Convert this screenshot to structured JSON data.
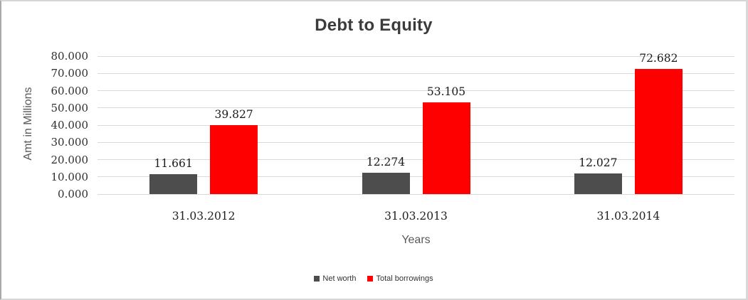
{
  "chart_data": {
    "type": "bar",
    "title": "Debt to Equity",
    "xlabel": "Years",
    "ylabel": "Amt in Millions",
    "categories": [
      "31.03.2012",
      "31.03.2013",
      "31.03.2014"
    ],
    "series": [
      {
        "name": "Net worth",
        "color": "#4d4d4d",
        "values": [
          11.661,
          12.274,
          12.027
        ],
        "data_labels": [
          "11.661",
          "12.274",
          "12.027"
        ]
      },
      {
        "name": "Total borrowings",
        "color": "#ff0000",
        "values": [
          39.827,
          53.105,
          72.682
        ],
        "data_labels": [
          "39.827",
          "53.105",
          "72.682"
        ]
      }
    ],
    "y_axis": {
      "min": 0,
      "max": 80,
      "step": 10,
      "tick_labels": [
        "0.000",
        "10.000",
        "20.000",
        "30.000",
        "40.000",
        "50.000",
        "60.000",
        "70.000",
        "80.000"
      ]
    },
    "grid": true,
    "legend_position": "bottom",
    "gridline_color": "#d9d9d9",
    "background": "#ffffff"
  }
}
